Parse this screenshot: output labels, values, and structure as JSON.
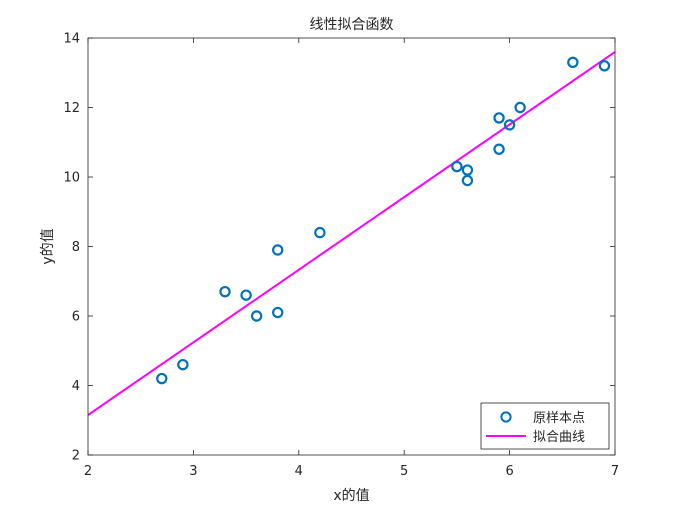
{
  "chart_data": {
    "type": "scatter",
    "title": "线性拟合函数",
    "xlabel": "x的值",
    "ylabel": "y的值",
    "xlim": [
      2,
      7
    ],
    "ylim": [
      2,
      14
    ],
    "xticks": [
      2,
      3,
      4,
      5,
      6,
      7
    ],
    "yticks": [
      2,
      4,
      6,
      8,
      10,
      12,
      14
    ],
    "grid": false,
    "legend_position": "bottom-right",
    "series": [
      {
        "name": "原样本点",
        "kind": "scatter",
        "marker": "circle",
        "color": "#0072BD",
        "x": [
          2.7,
          2.9,
          3.3,
          3.5,
          3.6,
          3.8,
          3.8,
          4.2,
          5.5,
          5.6,
          5.6,
          5.9,
          5.9,
          6.0,
          6.1,
          6.6,
          6.9
        ],
        "y": [
          4.2,
          4.6,
          6.7,
          6.6,
          6.0,
          7.9,
          6.1,
          8.4,
          10.3,
          10.2,
          9.9,
          11.7,
          10.8,
          11.5,
          12.0,
          13.3,
          13.2
        ]
      },
      {
        "name": "拟合曲线",
        "kind": "line",
        "color": "#FF00FF",
        "x": [
          2,
          7
        ],
        "y": [
          3.15,
          13.6
        ]
      }
    ]
  }
}
